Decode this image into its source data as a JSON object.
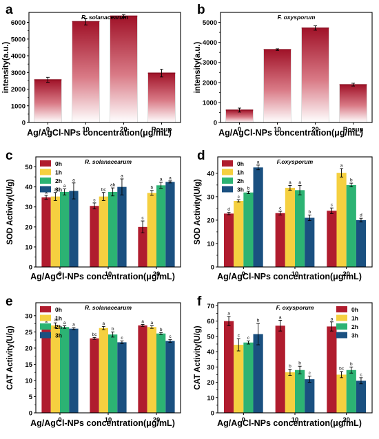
{
  "colors": {
    "red": "#b01c2e",
    "yellow": "#f5d040",
    "green": "#2cb373",
    "blue": "#1a5080",
    "axis": "#000000"
  },
  "chart_data": [
    {
      "panel_label": "a",
      "type": "bar",
      "title": "R. solanacearum",
      "xlabel": "Ag/AgCl-NPs concentration(μg/mL)",
      "ylabel": "intensity(a.u.)",
      "categories": [
        "0",
        "10",
        "20",
        "Rosup"
      ],
      "yticks": [
        "0",
        "1000",
        "2000",
        "3000",
        "4000",
        "5000",
        "6000"
      ],
      "ylim": [
        0,
        6600
      ],
      "style": "gradient",
      "series": [
        {
          "color": "red",
          "values": [
            2560,
            6050,
            6380,
            2960
          ],
          "errors": [
            150,
            200,
            80,
            230
          ]
        }
      ]
    },
    {
      "panel_label": "b",
      "type": "bar",
      "title": "F. oxysporum",
      "xlabel": "Ag/AgCl-NPs concentration(μg/mL)",
      "ylabel": "intensity(a.u.)",
      "categories": [
        "0",
        "10",
        "20",
        "Rosup"
      ],
      "yticks": [
        "0",
        "1000",
        "2000",
        "3000",
        "4000",
        "5000"
      ],
      "ylim": [
        0,
        5500
      ],
      "style": "gradient",
      "series": [
        {
          "color": "red",
          "values": [
            620,
            3640,
            4720,
            1890
          ],
          "errors": [
            100,
            40,
            110,
            70
          ]
        }
      ]
    },
    {
      "panel_label": "c",
      "type": "bar",
      "title": "R. solanacearum",
      "xlabel": "Ag/AgCl-NPs concentration(μg/mL)",
      "ylabel": "SOD Activity(U/g)",
      "categories": [
        "0",
        "10",
        "20"
      ],
      "yticks": [
        "0",
        "10",
        "20",
        "30",
        "40",
        "50"
      ],
      "ylim": [
        0,
        55
      ],
      "legend_position": "top-left",
      "series": [
        {
          "name": "0h",
          "color": "red",
          "values": [
            34.8,
            30.5,
            20.0
          ],
          "errors": [
            1.0,
            1.5,
            3.0
          ],
          "sig": [
            "a",
            "c",
            "c"
          ]
        },
        {
          "name": "1h",
          "color": "yellow",
          "values": [
            35.2,
            35.2,
            37.0
          ],
          "errors": [
            2.0,
            2.0,
            1.2
          ],
          "sig": [
            "a",
            "bc",
            "b"
          ]
        },
        {
          "name": "2h",
          "color": "green",
          "values": [
            37.5,
            37.5,
            40.8
          ],
          "errors": [
            1.5,
            2.0,
            1.5
          ],
          "sig": [
            "a",
            "ab",
            "a"
          ]
        },
        {
          "name": "3h",
          "color": "blue",
          "values": [
            38.0,
            40.0,
            42.5
          ],
          "errors": [
            4.0,
            4.0,
            0.5
          ],
          "sig": [
            "a",
            "a",
            "a"
          ]
        }
      ]
    },
    {
      "panel_label": "d",
      "type": "bar",
      "title": "F.oxysporum",
      "xlabel": "Ag/AgCl-NPs concentration(μg/mL)",
      "ylabel": "SOD Activity(U/g)",
      "categories": [
        "0",
        "10",
        "20"
      ],
      "yticks": [
        "0",
        "10",
        "20",
        "30",
        "40"
      ],
      "ylim": [
        0,
        47
      ],
      "legend_position": "top-left",
      "series": [
        {
          "name": "0h",
          "color": "red",
          "values": [
            22.8,
            23.0,
            24.0
          ],
          "errors": [
            0.5,
            0.8,
            1.2
          ],
          "sig": [
            "d",
            "c",
            "c"
          ]
        },
        {
          "name": "1h",
          "color": "yellow",
          "values": [
            28.2,
            33.8,
            40.2
          ],
          "errors": [
            0.5,
            1.0,
            1.8
          ],
          "sig": [
            "c",
            "a",
            "a"
          ]
        },
        {
          "name": "2h",
          "color": "green",
          "values": [
            31.8,
            32.8,
            35.0
          ],
          "errors": [
            0.5,
            2.0,
            0.8
          ],
          "sig": [
            "b",
            "a",
            "b"
          ]
        },
        {
          "name": "3h",
          "color": "blue",
          "values": [
            42.5,
            21.0,
            20.0
          ],
          "errors": [
            1.0,
            1.2,
            0.8
          ],
          "sig": [
            "a",
            "b",
            "d"
          ]
        }
      ]
    },
    {
      "panel_label": "e",
      "type": "bar",
      "title": "R. solanacearum",
      "xlabel": "Ag/AgCl-NPs concentration(μg/mL)",
      "ylabel": "CAT Activity(U/g)",
      "categories": [
        "0",
        "10",
        "20"
      ],
      "yticks": [
        "0",
        "5",
        "10",
        "15",
        "20",
        "25",
        "30"
      ],
      "ylim": [
        0,
        34
      ],
      "legend_position": "top-left",
      "series": [
        {
          "name": "0h",
          "color": "red",
          "values": [
            27.0,
            23.0,
            27.0
          ],
          "errors": [
            0.3,
            0.3,
            0.3
          ],
          "sig": [
            "a",
            "bc",
            "a"
          ]
        },
        {
          "name": "1h",
          "color": "yellow",
          "values": [
            27.0,
            26.2,
            26.5
          ],
          "errors": [
            0.8,
            0.5,
            0.4
          ],
          "sig": [
            "a",
            "a",
            "a"
          ]
        },
        {
          "name": "2h",
          "color": "green",
          "values": [
            26.5,
            24.2,
            24.5
          ],
          "errors": [
            0.4,
            0.8,
            0.3
          ],
          "sig": [
            "a",
            "b",
            "b"
          ]
        },
        {
          "name": "3h",
          "color": "blue",
          "values": [
            26.0,
            21.8,
            22.2
          ],
          "errors": [
            0.3,
            0.4,
            0.4
          ],
          "sig": [
            "a",
            "c",
            "c"
          ]
        }
      ]
    },
    {
      "panel_label": "f",
      "type": "bar",
      "title": "F. oxysporum",
      "xlabel": "Ag/AgCl-NPs concentration(μg/mL)",
      "ylabel": "CAT Activity(U/g)",
      "categories": [
        "0",
        "10",
        "20"
      ],
      "yticks": [
        "0",
        "10",
        "20",
        "30",
        "40",
        "50",
        "60",
        "70"
      ],
      "ylim": [
        0,
        72
      ],
      "legend_position": "top-right",
      "series": [
        {
          "name": "0h",
          "color": "red",
          "values": [
            60.0,
            57.0,
            56.5
          ],
          "errors": [
            3.0,
            3.5,
            3.0
          ],
          "sig": [
            "a",
            "a",
            "a"
          ]
        },
        {
          "name": "1h",
          "color": "yellow",
          "values": [
            44.5,
            26.5,
            25.0
          ],
          "errors": [
            4.0,
            2.0,
            2.0
          ],
          "sig": [
            "c",
            "b",
            "bc"
          ]
        },
        {
          "name": "2h",
          "color": "green",
          "values": [
            46.0,
            28.0,
            28.0
          ],
          "errors": [
            1.0,
            2.5,
            2.0
          ],
          "sig": [
            "c",
            "b",
            "b"
          ]
        },
        {
          "name": "3h",
          "color": "blue",
          "values": [
            51.5,
            22.0,
            21.0
          ],
          "errors": [
            7.0,
            2.0,
            2.0
          ],
          "sig": [
            "b",
            "c",
            "c"
          ]
        }
      ]
    }
  ]
}
